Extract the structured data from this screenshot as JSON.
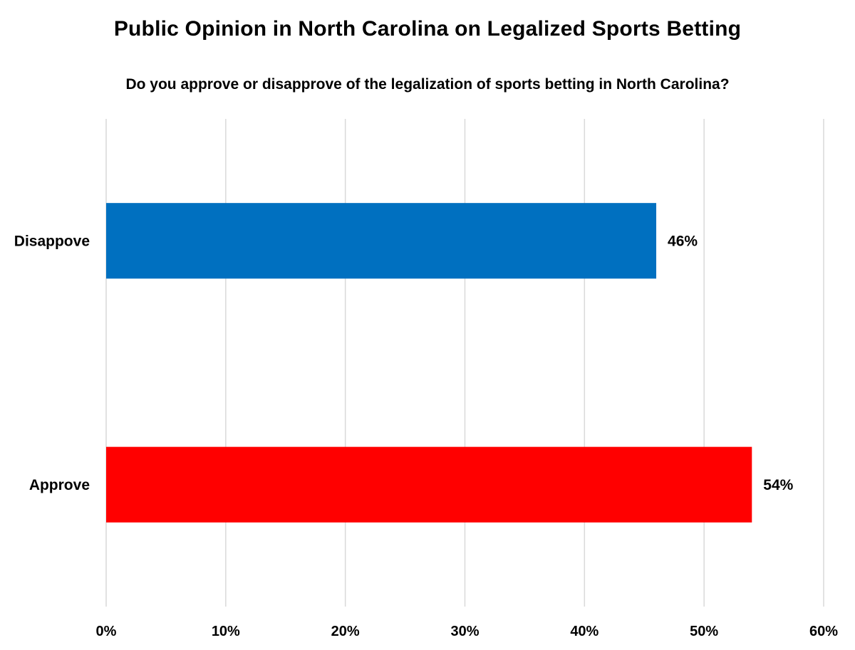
{
  "chart_data": {
    "type": "bar",
    "orientation": "horizontal",
    "title": "Public Opinion in North Carolina on Legalized Sports Betting",
    "subtitle": "Do you approve or disapprove of the legalization of sports betting in North Carolina?",
    "categories": [
      "Disappove",
      "Approve"
    ],
    "values": [
      46,
      54
    ],
    "data_labels": [
      "46%",
      "54%"
    ],
    "colors": [
      "#0070C0",
      "#FF0000"
    ],
    "xlim": [
      0,
      60
    ],
    "x_ticks": [
      0,
      10,
      20,
      30,
      40,
      50,
      60
    ],
    "x_tick_labels": [
      "0%",
      "10%",
      "20%",
      "30%",
      "40%",
      "50%",
      "60%"
    ],
    "grid": true,
    "legend": "none",
    "xlabel": "",
    "ylabel": ""
  }
}
